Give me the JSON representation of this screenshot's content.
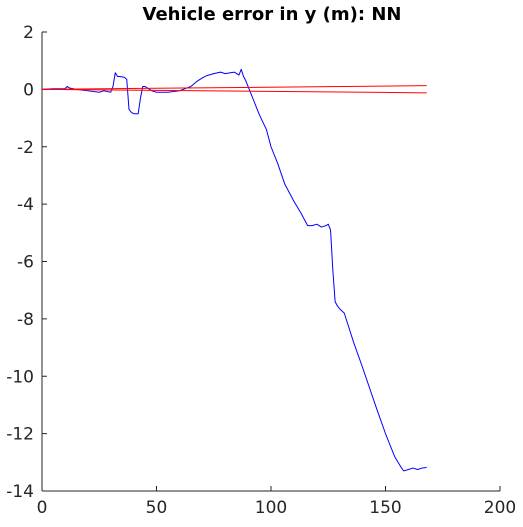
{
  "chart_data": {
    "type": "line",
    "title": "Vehicle error in y (m): NN",
    "xlabel": "",
    "ylabel": "",
    "xlim": [
      0,
      200
    ],
    "ylim": [
      -14,
      2
    ],
    "xticks": [
      0,
      50,
      100,
      150,
      200
    ],
    "yticks": [
      2,
      0,
      -2,
      -4,
      -6,
      -8,
      -10,
      -12,
      -14
    ],
    "grid": false,
    "series": [
      {
        "color": "#0000ff",
        "x": [
          0,
          5,
          10,
          11,
          12,
          15,
          20,
          25,
          27,
          30,
          31,
          32,
          33,
          34,
          36,
          37,
          38,
          39,
          40,
          42,
          43,
          44,
          45,
          46,
          48,
          50,
          55,
          60,
          65,
          68,
          70,
          72,
          75,
          78,
          80,
          84,
          86,
          87,
          88,
          89,
          90,
          92,
          95,
          98,
          100,
          103,
          106,
          110,
          113,
          116,
          118,
          120,
          122,
          124,
          125,
          126,
          127,
          128,
          129,
          130,
          132,
          134,
          136,
          140,
          143,
          146,
          150,
          154,
          157,
          158,
          160,
          162,
          164,
          166,
          168
        ],
        "y": [
          0,
          0.02,
          0.02,
          0.1,
          0.05,
          0,
          -0.05,
          -0.1,
          -0.05,
          -0.1,
          0.1,
          0.58,
          0.45,
          0.45,
          0.42,
          0.35,
          -0.7,
          -0.8,
          -0.85,
          -0.85,
          -0.3,
          0.1,
          0.1,
          0.05,
          -0.05,
          -0.1,
          -0.1,
          -0.05,
          0.1,
          0.3,
          0.4,
          0.48,
          0.55,
          0.6,
          0.55,
          0.6,
          0.5,
          0.7,
          0.45,
          0.3,
          0.1,
          -0.3,
          -0.9,
          -1.4,
          -2.0,
          -2.6,
          -3.3,
          -3.9,
          -4.3,
          -4.75,
          -4.75,
          -4.7,
          -4.8,
          -4.75,
          -4.7,
          -4.9,
          -6.3,
          -7.4,
          -7.55,
          -7.65,
          -7.8,
          -8.3,
          -8.8,
          -9.7,
          -10.4,
          -11.1,
          -12.0,
          -12.8,
          -13.2,
          -13.3,
          -13.25,
          -13.2,
          -13.25,
          -13.2,
          -13.18
        ]
      },
      {
        "color": "#ff0000",
        "x": [
          0,
          168
        ],
        "y": [
          0,
          0.13
        ]
      },
      {
        "color": "#ff0000",
        "x": [
          0,
          168
        ],
        "y": [
          0,
          -0.12
        ]
      }
    ]
  }
}
